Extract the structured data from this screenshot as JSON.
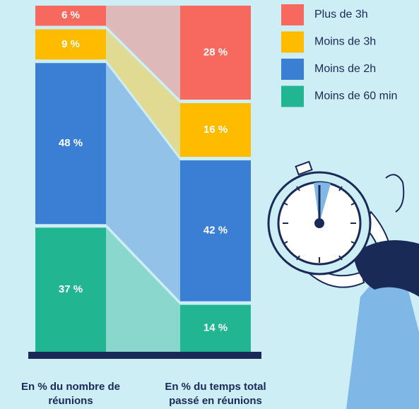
{
  "chart_data": {
    "type": "bar",
    "stacked": true,
    "categories": [
      "En % du nombre de réunions",
      "En % du temps total passé en réunions"
    ],
    "series": [
      {
        "name": "Moins de 60 min",
        "color": "#22b592",
        "values": [
          37,
          14
        ],
        "value_labels": [
          "37 %",
          "14 %"
        ]
      },
      {
        "name": "Moins de 2h",
        "color": "#3b7fd4",
        "values": [
          48,
          42
        ],
        "value_labels": [
          "48 %",
          "42 %"
        ]
      },
      {
        "name": "Moins de 3h",
        "color": "#ffbb00",
        "values": [
          9,
          16
        ],
        "value_labels": [
          "9 %",
          "16 %"
        ]
      },
      {
        "name": "Plus de 3h",
        "color": "#f7695e",
        "values": [
          6,
          28
        ],
        "value_labels": [
          "6 %",
          "28 %"
        ]
      }
    ],
    "legend": "top-right"
  }
}
